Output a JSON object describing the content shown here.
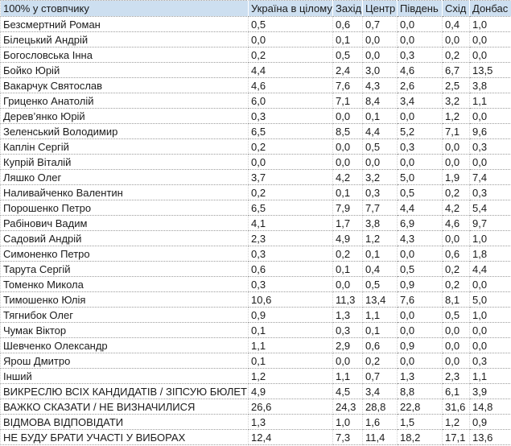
{
  "colors": {
    "header_bg": "#cddff0",
    "row_bg": "#ffffff",
    "grid_line": "#9c9c9c",
    "text": "#1b1b1b"
  },
  "chart_data": {
    "type": "table",
    "corner_label": "100% у стовпчику",
    "columns": [
      "Україна в цілому",
      "Захід",
      "Центр",
      "Південь",
      "Схід",
      "Донбас"
    ],
    "rows": [
      {
        "label": "Безсмертний Роман",
        "values": [
          "0,5",
          "0,6",
          "0,7",
          "0,0",
          "0,4",
          "1,0"
        ]
      },
      {
        "label": "Білецький Андрій",
        "values": [
          "0,0",
          "0,1",
          "0,0",
          "0,0",
          "0,0",
          "0,0"
        ]
      },
      {
        "label": "Богословська Інна",
        "values": [
          "0,2",
          "0,5",
          "0,0",
          "0,3",
          "0,2",
          "0,0"
        ]
      },
      {
        "label": "Бойко Юрій",
        "values": [
          "4,4",
          "2,4",
          "3,0",
          "4,6",
          "6,7",
          "13,5"
        ]
      },
      {
        "label": "Вакарчук Святослав",
        "values": [
          "4,6",
          "7,6",
          "4,3",
          "2,6",
          "2,5",
          "3,8"
        ]
      },
      {
        "label": "Гриценко Анатолій",
        "values": [
          "6,0",
          "7,1",
          "8,4",
          "3,4",
          "3,2",
          "1,1"
        ]
      },
      {
        "label": "Дерев’янко Юрій",
        "values": [
          "0,3",
          "0,0",
          "0,1",
          "0,0",
          "1,2",
          "0,0"
        ]
      },
      {
        "label": "Зеленський Володимир",
        "values": [
          "6,5",
          "8,5",
          "4,4",
          "5,2",
          "7,1",
          "9,6"
        ]
      },
      {
        "label": "Каплін Сергій",
        "values": [
          "0,2",
          "0,0",
          "0,5",
          "0,3",
          "0,0",
          "0,3"
        ]
      },
      {
        "label": "Купрій Віталій",
        "values": [
          "0,0",
          "0,0",
          "0,0",
          "0,0",
          "0,0",
          "0,0"
        ]
      },
      {
        "label": "Ляшко Олег",
        "values": [
          "3,7",
          "4,2",
          "3,2",
          "5,0",
          "1,9",
          "7,4"
        ]
      },
      {
        "label": "Наливайченко Валентин",
        "values": [
          "0,2",
          "0,1",
          "0,3",
          "0,5",
          "0,2",
          "0,3"
        ]
      },
      {
        "label": "Порошенко Петро",
        "values": [
          "6,5",
          "7,9",
          "7,7",
          "4,4",
          "4,2",
          "5,4"
        ]
      },
      {
        "label": "Рабінович Вадим",
        "values": [
          "4,1",
          "1,7",
          "3,8",
          "6,9",
          "4,6",
          "9,7"
        ]
      },
      {
        "label": "Садовий Андрій",
        "values": [
          "2,3",
          "4,9",
          "1,2",
          "4,3",
          "0,0",
          "1,0"
        ]
      },
      {
        "label": "Симоненко Петро",
        "values": [
          "0,3",
          "0,2",
          "0,1",
          "0,0",
          "0,6",
          "1,8"
        ]
      },
      {
        "label": "Тарута Сергій",
        "values": [
          "0,6",
          "0,1",
          "0,4",
          "0,5",
          "0,2",
          "4,4"
        ]
      },
      {
        "label": "Томенко Микола",
        "values": [
          "0,3",
          "0,0",
          "0,5",
          "0,9",
          "0,2",
          "0,0"
        ]
      },
      {
        "label": "Тимошенко Юлія",
        "values": [
          "10,6",
          "11,3",
          "13,4",
          "7,6",
          "8,1",
          "5,0"
        ]
      },
      {
        "label": "Тягнибок Олег",
        "values": [
          "0,9",
          "1,3",
          "1,1",
          "0,0",
          "0,5",
          "1,0"
        ]
      },
      {
        "label": "Чумак Віктор",
        "values": [
          "0,1",
          "0,3",
          "0,1",
          "0,0",
          "0,0",
          "0,0"
        ]
      },
      {
        "label": "Шевченко Олександр",
        "values": [
          "1,1",
          "2,9",
          "0,6",
          "0,9",
          "0,0",
          "0,0"
        ]
      },
      {
        "label": "Ярош Дмитро",
        "values": [
          "0,1",
          "0,0",
          "0,2",
          "0,0",
          "0,0",
          "0,3"
        ]
      },
      {
        "label": "Інший",
        "values": [
          "1,2",
          "1,1",
          "0,7",
          "1,3",
          "2,3",
          "1,1"
        ]
      },
      {
        "label": "ВИКРЕСЛЮ ВСІХ КАНДИДАТІВ / ЗІПСУЮ БЮЛЕТЕНЬ",
        "values": [
          "4,9",
          "4,5",
          "3,4",
          "8,8",
          "6,1",
          "3,9"
        ]
      },
      {
        "label": "ВАЖКО СКАЗАТИ / НЕ ВИЗНАЧИЛИСЯ",
        "values": [
          "26,6",
          "24,3",
          "28,8",
          "22,8",
          "31,6",
          "14,8"
        ]
      },
      {
        "label": "ВІДМОВА ВІДПОВІДАТИ",
        "values": [
          "1,3",
          "1,0",
          "1,6",
          "1,5",
          "1,2",
          "0,9"
        ]
      },
      {
        "label": "НЕ БУДУ БРАТИ УЧАСТІ У ВИБОРАХ",
        "values": [
          "12,4",
          "7,3",
          "11,4",
          "18,2",
          "17,1",
          "13,6"
        ]
      }
    ]
  }
}
